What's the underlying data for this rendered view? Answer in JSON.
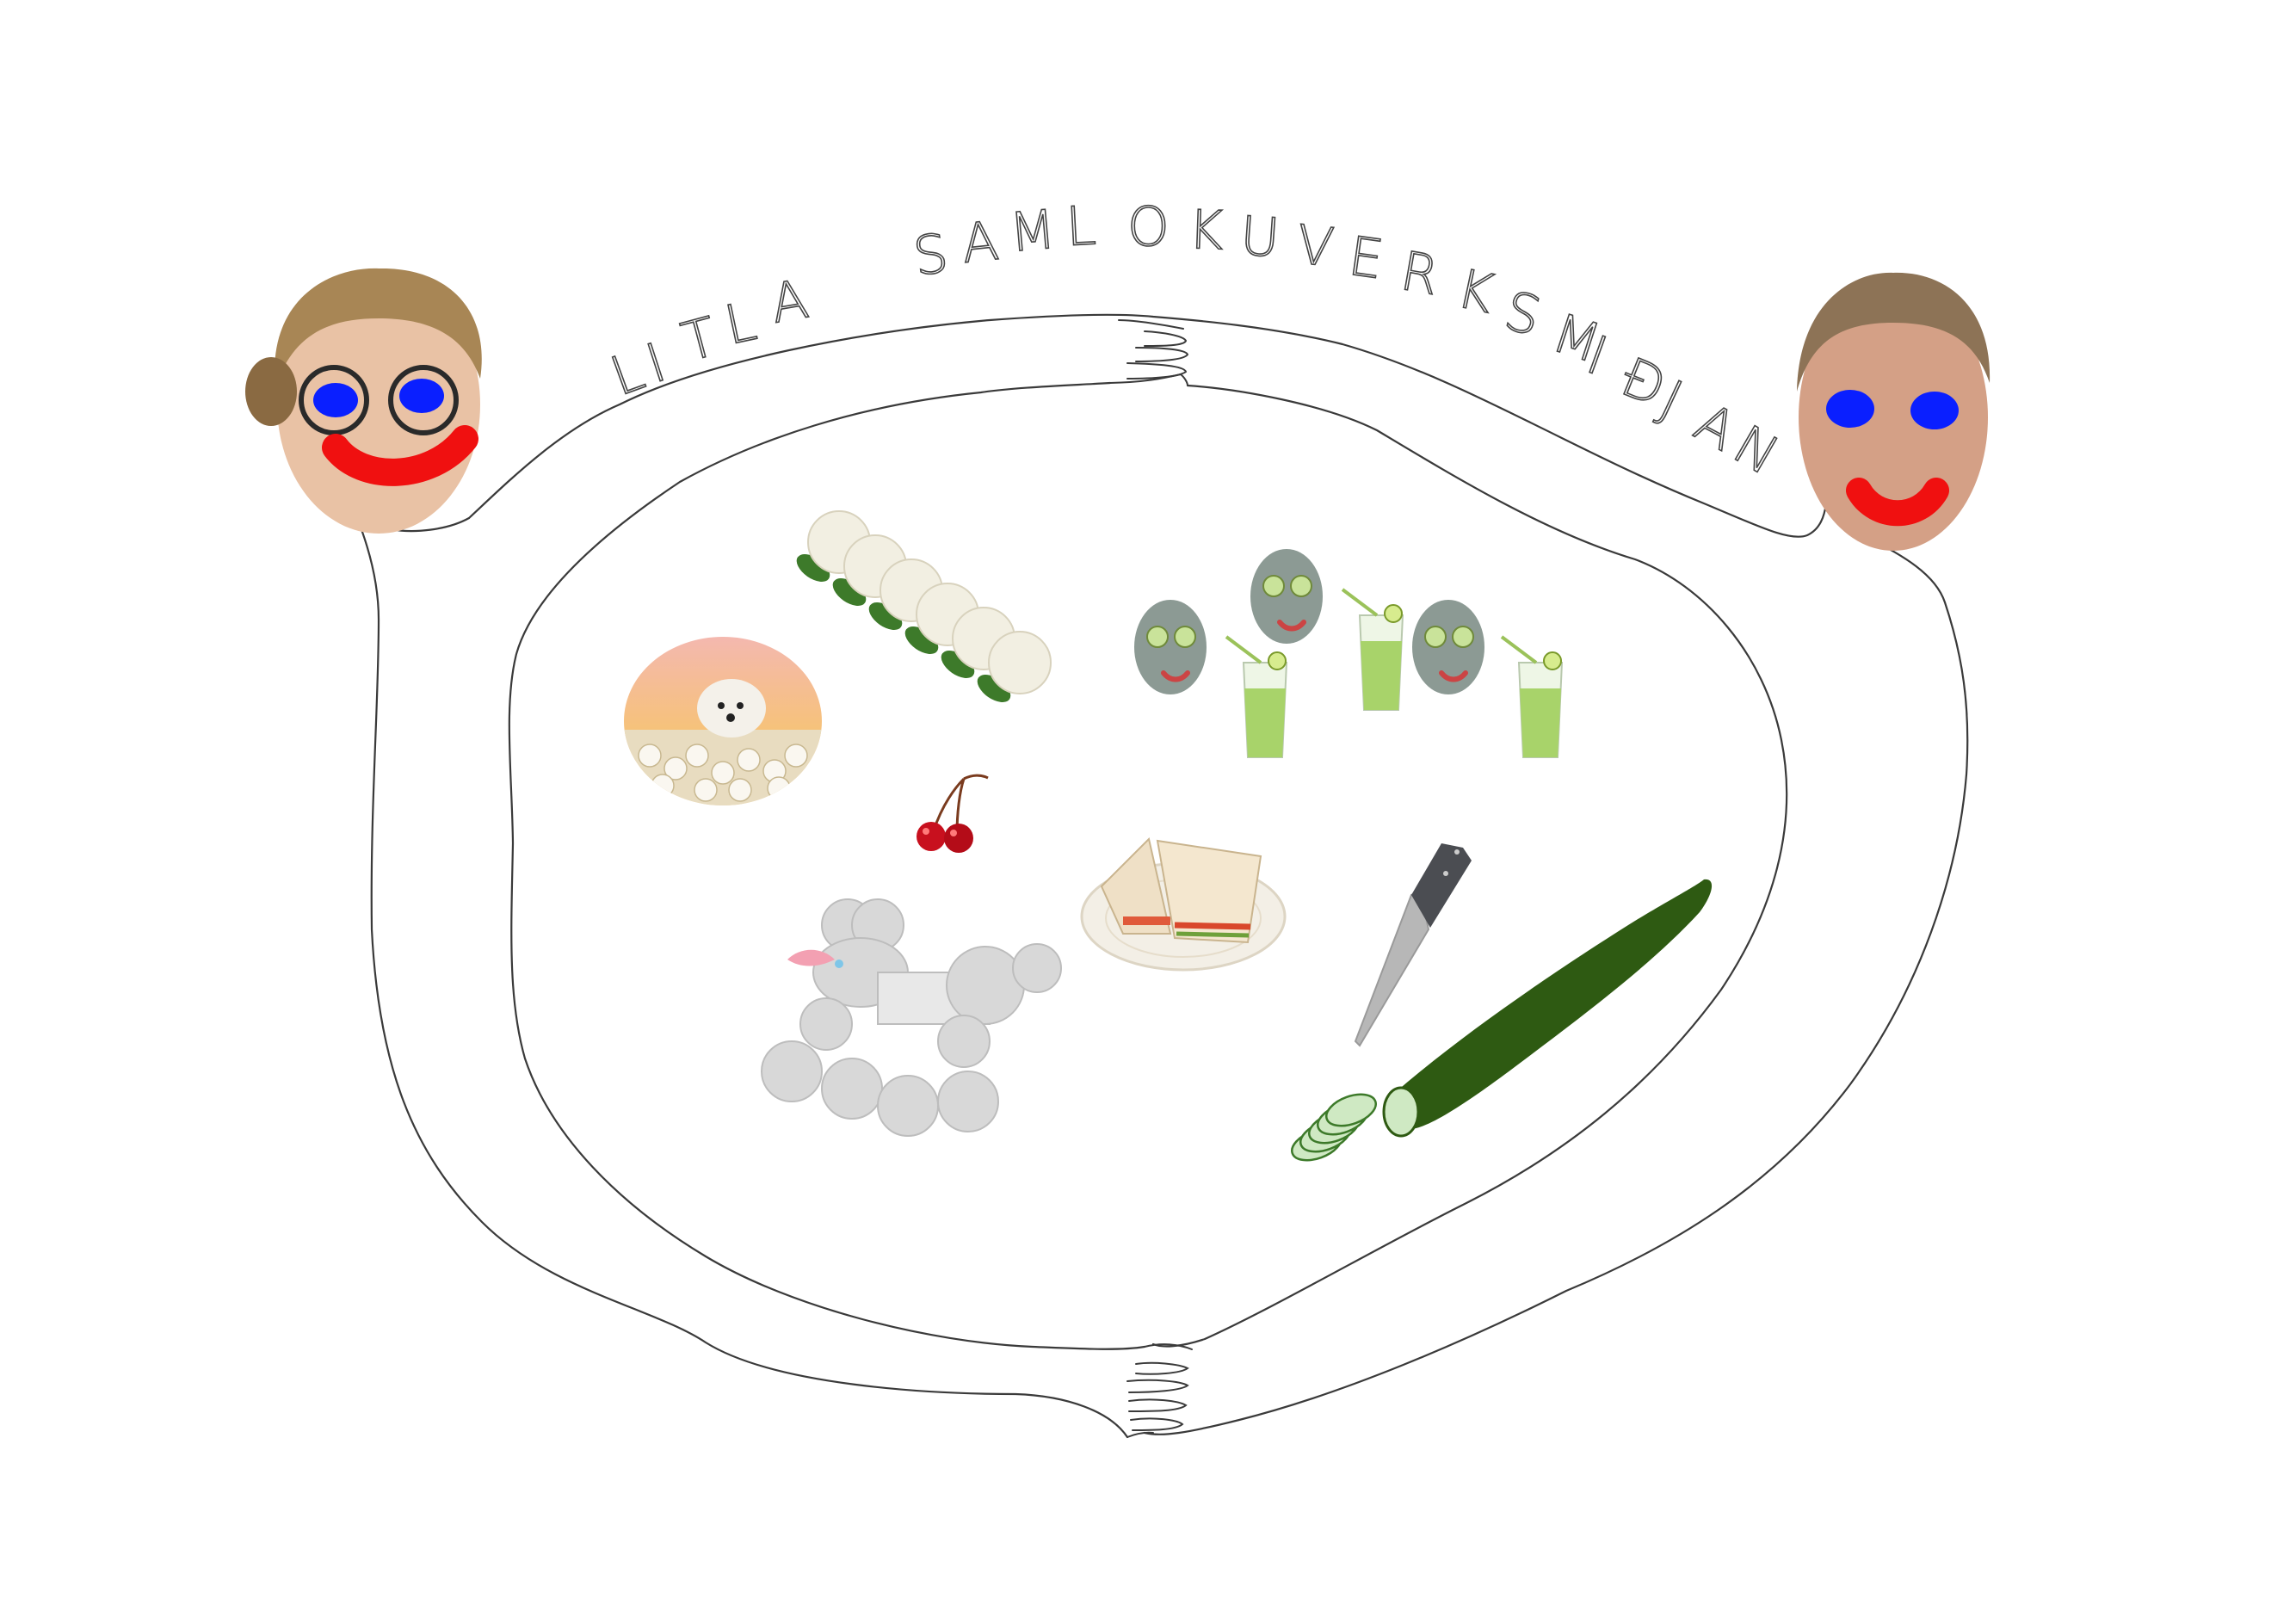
{
  "title": {
    "text": "LITLA SAMLOKUVERKSMIÐJAN",
    "letters": [
      "L",
      "I",
      "T",
      "L",
      "A",
      "S",
      "A",
      "M",
      "L",
      "O",
      "K",
      "U",
      "V",
      "E",
      "R",
      "K",
      "S",
      "M",
      "I",
      "Ð",
      "J",
      "A",
      "N"
    ]
  },
  "colors": {
    "background": "#ffffff",
    "line": "#3a3a3a",
    "eye_blue": "#0a1fff",
    "mouth_red": "#f01010",
    "cucumber": "#2e5a12",
    "cucumber_light": "#cfe9c3",
    "poodle": "#d8d8d8",
    "cherry": "#c8101e",
    "cauliflower": "#f2efe2",
    "leaf_green": "#3d7a2a",
    "juice_green": "#a8d36a",
    "mask_grey": "#8c9a94"
  },
  "icons": {
    "face_left": "person-face-left-icon",
    "face_right": "person-face-right-icon",
    "cauliflower": "cauliflower-row-icon",
    "dog_collage": "dog-collage-icon",
    "cherries": "cherries-icon",
    "face_masks": "cucumber-face-mask-icon",
    "drinks": "cucumber-drink-icon",
    "sandwich": "sandwich-plate-icon",
    "poodle": "poodle-icon",
    "knife": "knife-icon",
    "cucumber": "cucumber-icon"
  }
}
